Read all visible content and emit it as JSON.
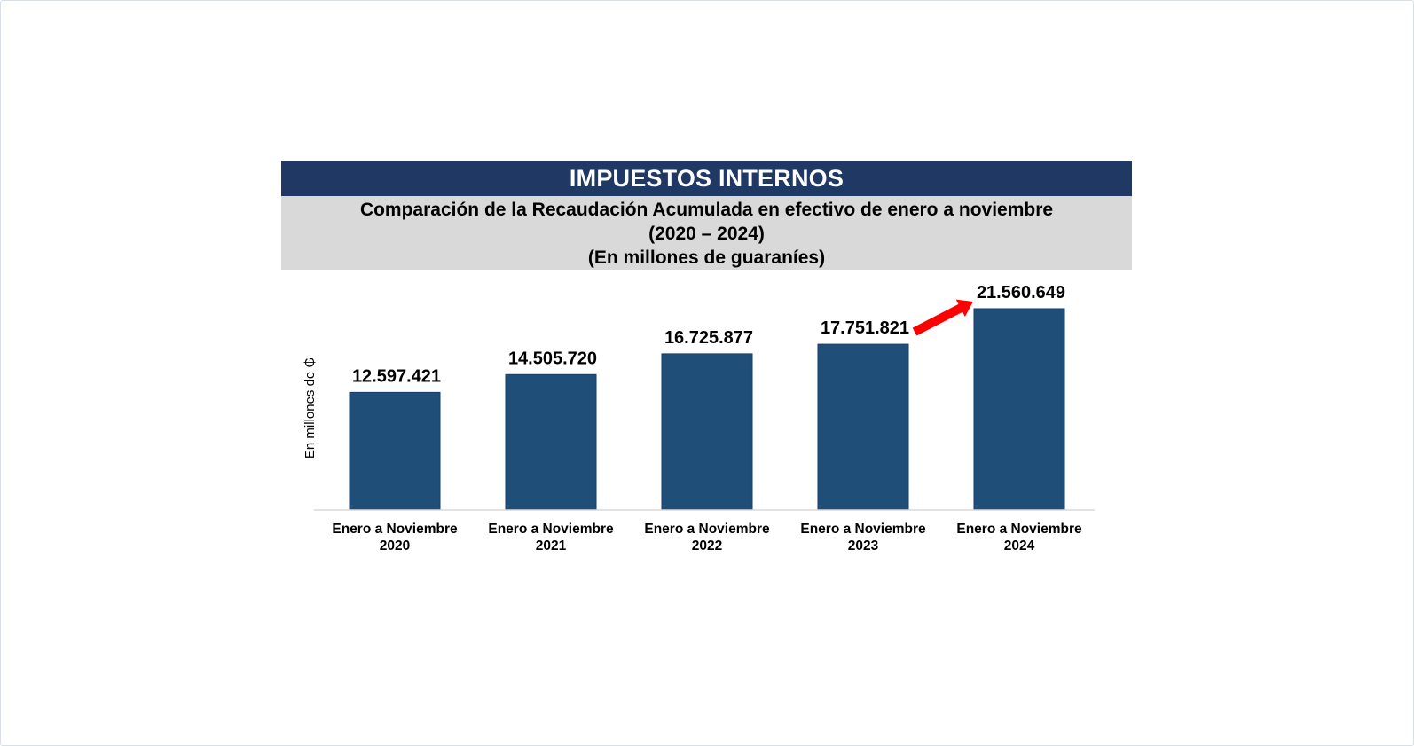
{
  "banner": {
    "title": "IMPUESTOS INTERNOS"
  },
  "subtitle": {
    "line1": "Comparación de la Recaudación Acumulada en efectivo de enero a noviembre",
    "line2": "(2020 – 2024)",
    "line3": "(En millones de guaraníes)"
  },
  "chart_data": {
    "type": "bar",
    "title": "IMPUESTOS INTERNOS",
    "ylabel": "En millones de ₲",
    "xlabel": "",
    "categories": [
      [
        "Enero a Noviembre",
        "2020"
      ],
      [
        "Enero a Noviembre",
        "2021"
      ],
      [
        "Enero a Noviembre",
        "2022"
      ],
      [
        "Enero a Noviembre",
        "2023"
      ],
      [
        "Enero a Noviembre",
        "2024"
      ]
    ],
    "values": [
      12597421,
      14505720,
      16725877,
      17751821,
      21560649
    ],
    "value_labels": [
      "12.597.421",
      "14.505.720",
      "16.725.877",
      "17.751.821",
      "21.560.649"
    ],
    "bar_color": "#1f4e79",
    "annotation": {
      "type": "arrow",
      "from_category": 3,
      "to_category": 4,
      "color": "#ff0000"
    },
    "legend": "none",
    "grid": false
  }
}
